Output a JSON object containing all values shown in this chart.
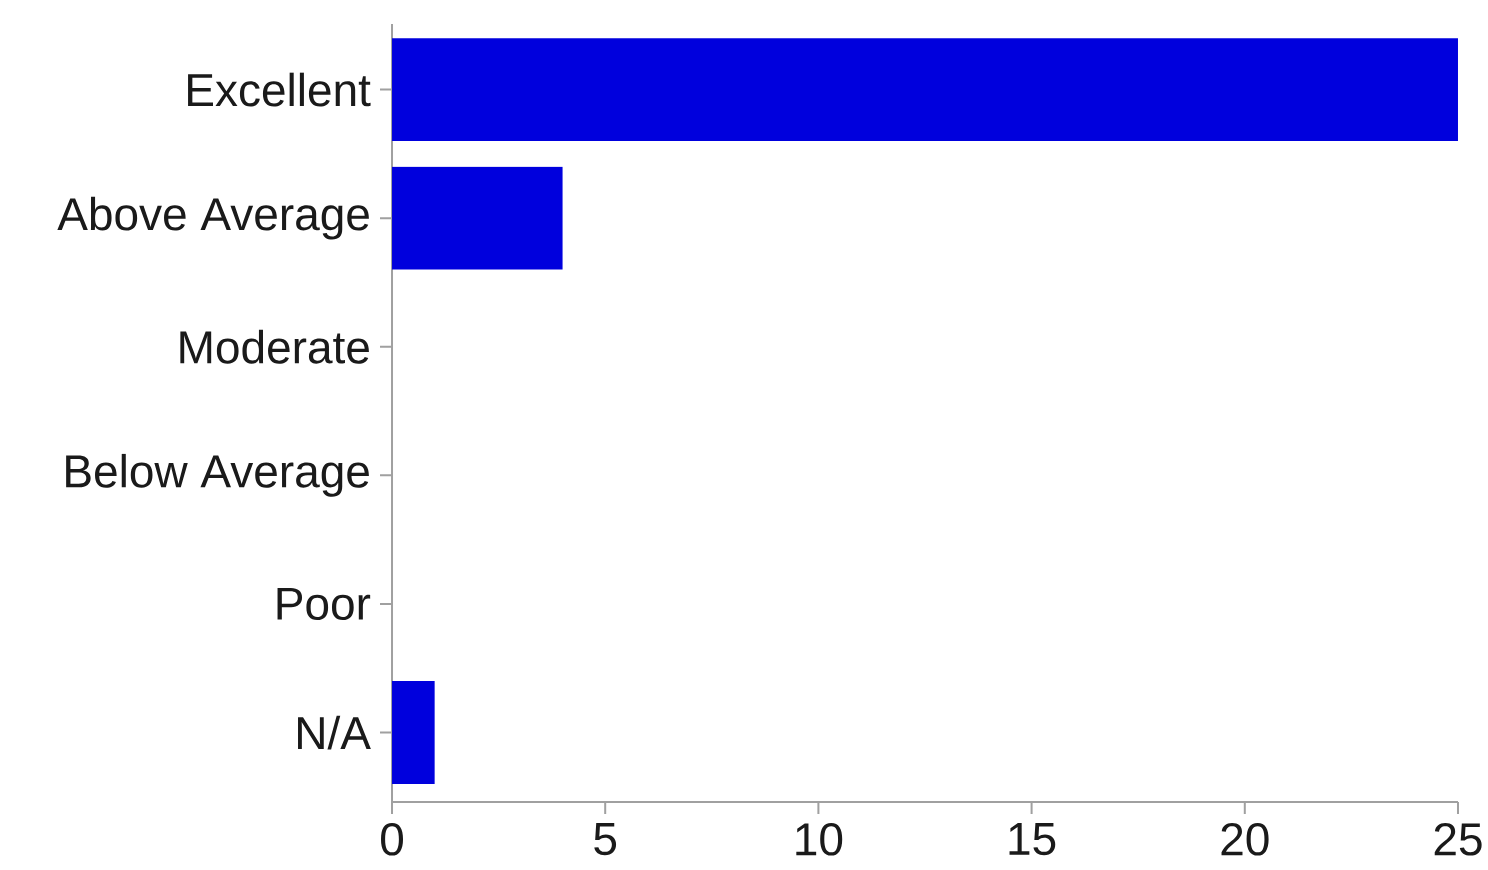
{
  "chart_data": {
    "type": "bar",
    "orientation": "horizontal",
    "categories": [
      "Excellent",
      "Above Average",
      "Moderate",
      "Below Average",
      "Poor",
      "N/A"
    ],
    "values": [
      25,
      4,
      0,
      0,
      0,
      1
    ],
    "color": "#0000dd",
    "xlim": [
      0,
      25
    ],
    "xticks": [
      0,
      5,
      10,
      15,
      20,
      25
    ]
  }
}
